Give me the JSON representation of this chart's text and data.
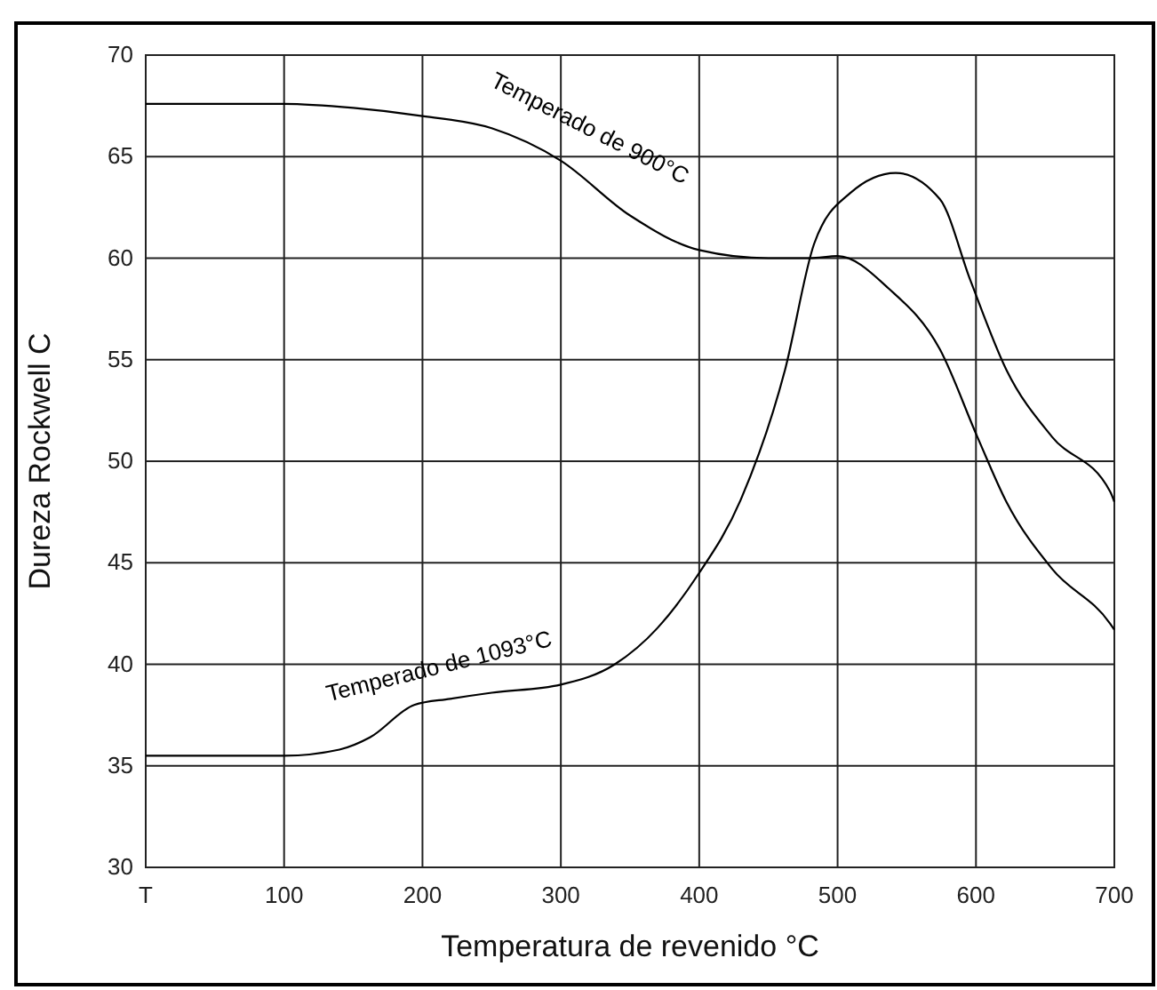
{
  "chart_data": {
    "type": "line",
    "xlabel": "Temperatura de revenido °C",
    "ylabel": "Dureza Rockwell C",
    "xlim": [
      0,
      700
    ],
    "xticks": [
      {
        "value": 0,
        "label": "T"
      },
      100,
      200,
      300,
      400,
      500,
      600,
      700
    ],
    "ylim": [
      30,
      70
    ],
    "yticks": [
      30,
      35,
      40,
      45,
      50,
      55,
      60,
      65,
      70
    ],
    "grid": true,
    "legend": false,
    "marker": "none",
    "line_style": "solid",
    "series": [
      {
        "name": "Temperado de 900°C",
        "color": "#000000",
        "x": [
          0,
          100,
          150,
          200,
          250,
          300,
          350,
          400,
          450,
          480,
          500,
          537,
          574,
          601,
          622,
          655,
          697,
          700
        ],
        "values": [
          67.6,
          67.6,
          67.4,
          67.0,
          66.4,
          64.8,
          62.1,
          60.4,
          60.0,
          60.0,
          60.1,
          58.5,
          55.5,
          51.2,
          48.0,
          44.7,
          42.0,
          41.7
        ]
      },
      {
        "name": "Temperado de 1093°C",
        "color": "#000000",
        "x": [
          0,
          100,
          140,
          162,
          194,
          220,
          250,
          300,
          339,
          370,
          398,
          430,
          462,
          483,
          509,
          542,
          574,
          596,
          622,
          655,
          697,
          700
        ],
        "values": [
          35.5,
          35.5,
          35.8,
          36.4,
          38.0,
          38.3,
          38.6,
          39.0,
          40.0,
          41.8,
          44.3,
          48.1,
          54.5,
          60.7,
          63.2,
          64.2,
          62.9,
          58.9,
          54.5,
          51.2,
          48.5,
          48.0
        ]
      }
    ]
  }
}
